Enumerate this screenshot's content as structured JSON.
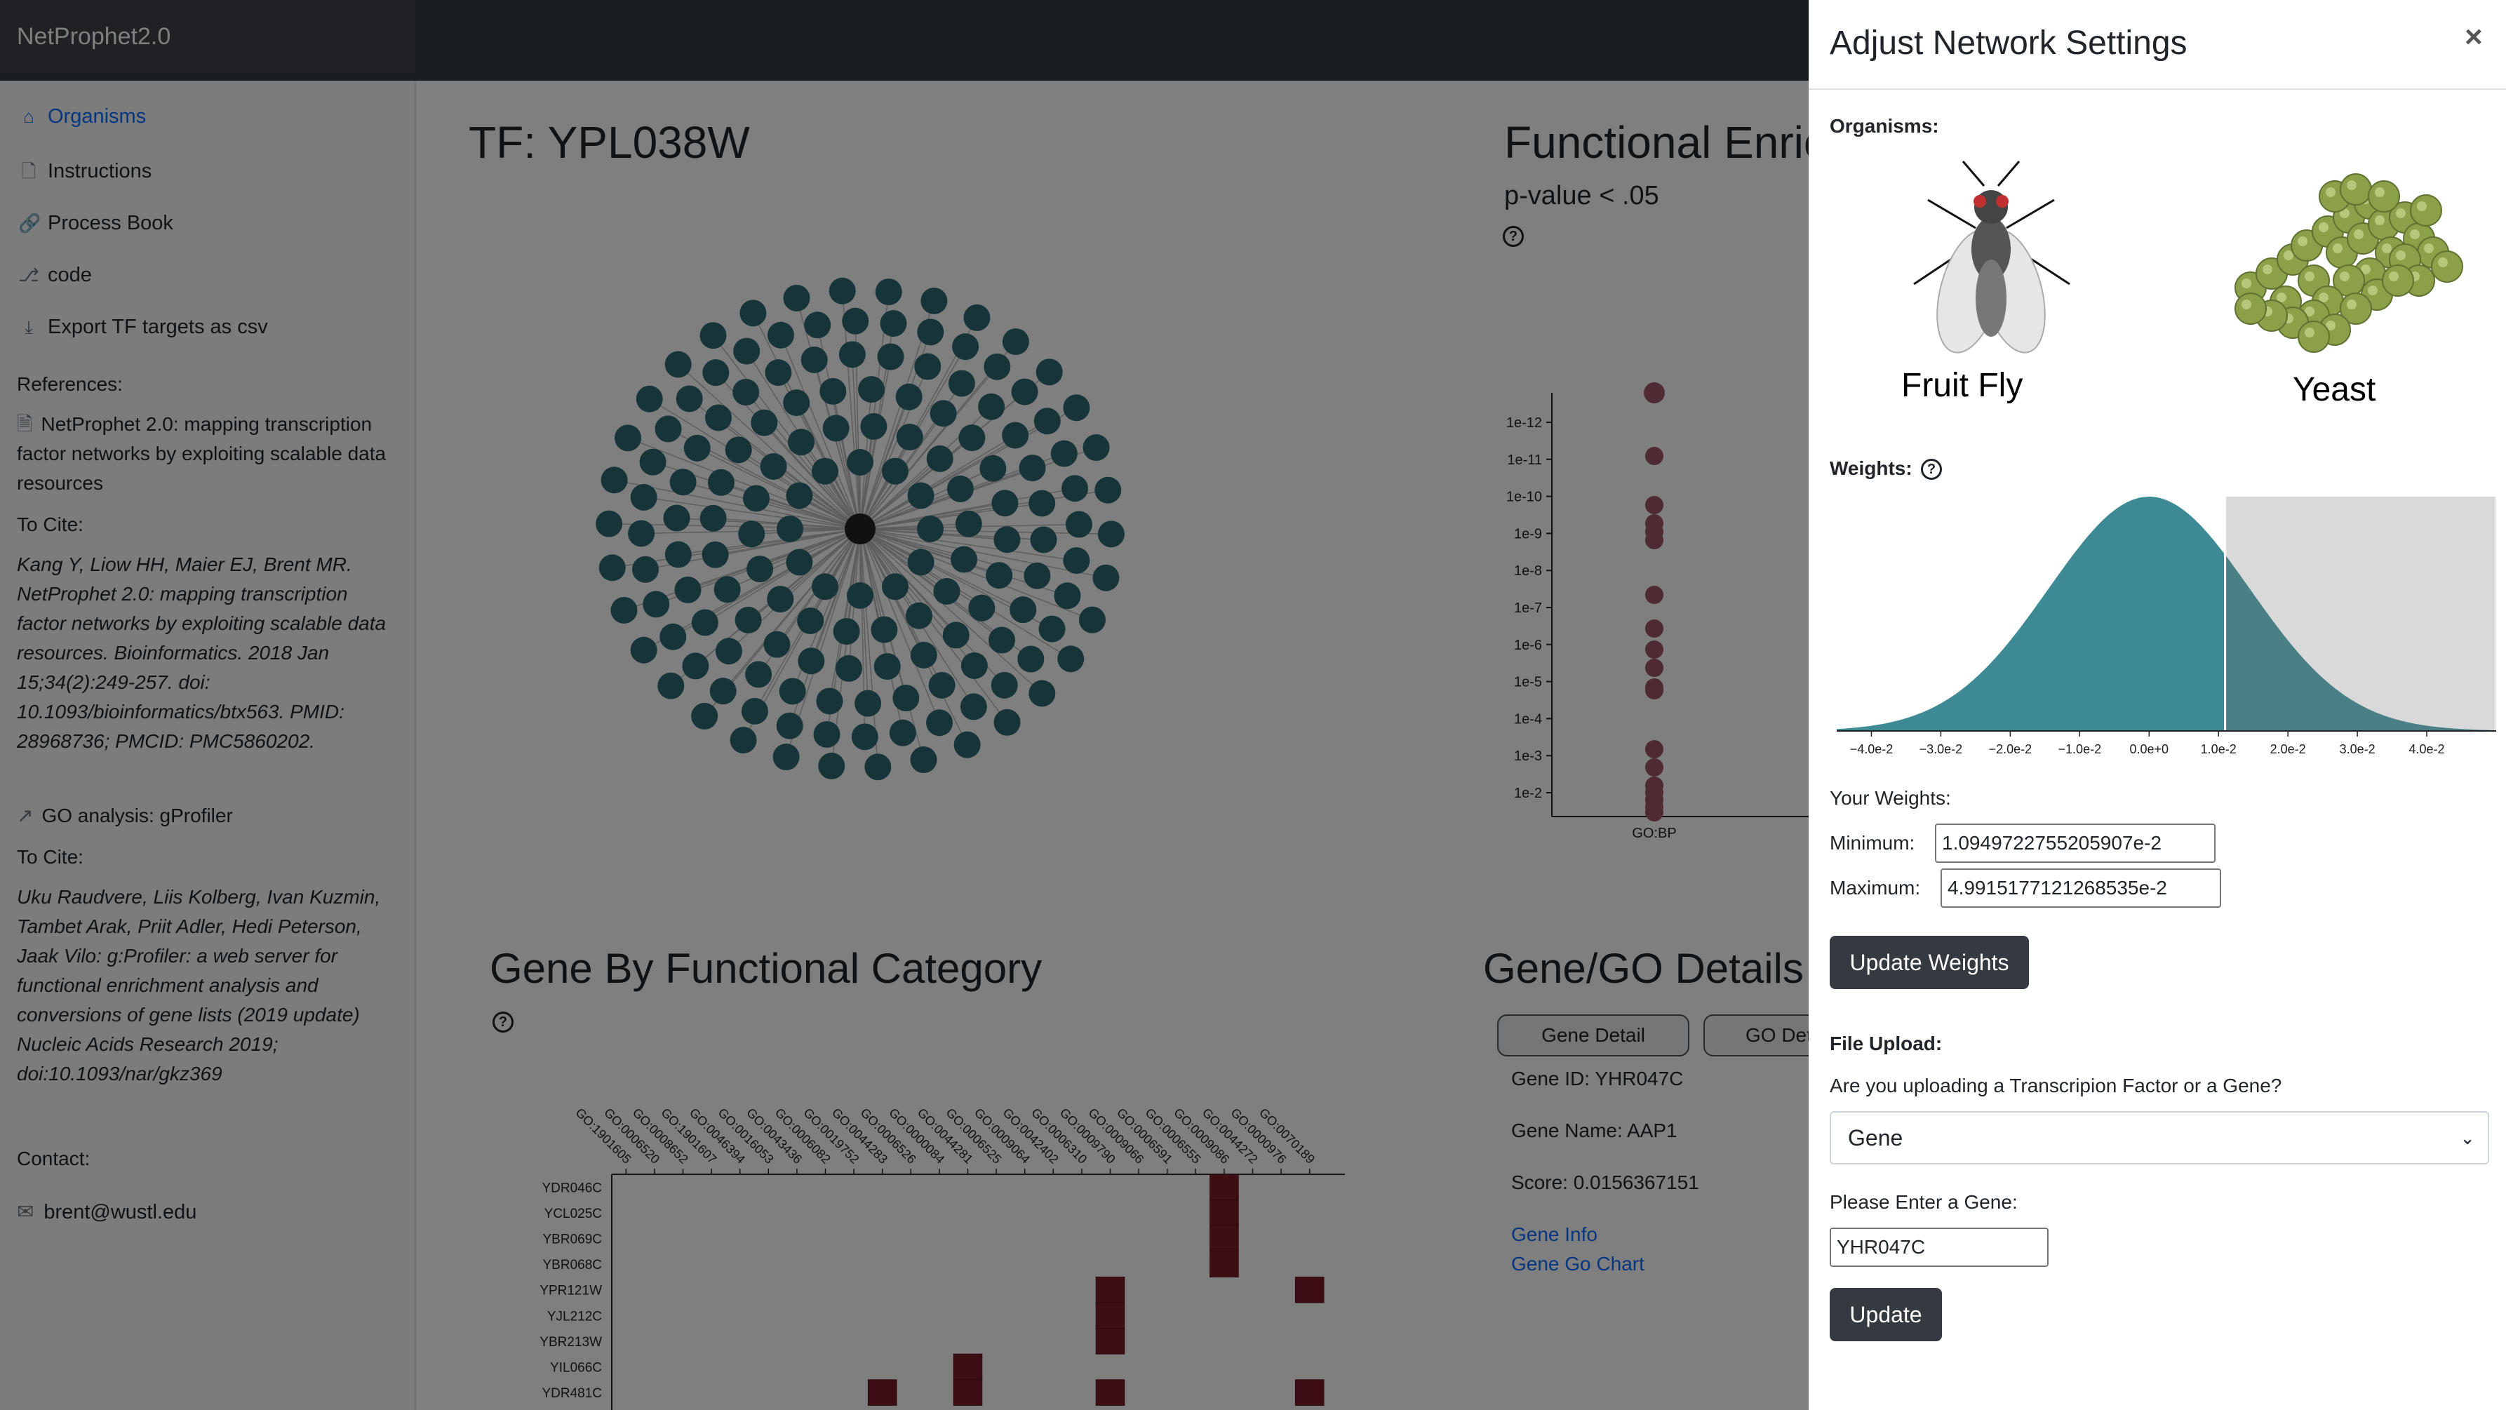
{
  "navbar": {
    "brand": "NetProphet2.0"
  },
  "sidebar": {
    "items": [
      {
        "label": "Organisms",
        "icon": "home-icon",
        "active": true
      },
      {
        "label": "Instructions",
        "icon": "file-icon"
      },
      {
        "label": "Process Book",
        "icon": "link-icon"
      },
      {
        "label": "code",
        "icon": "github-icon"
      },
      {
        "label": "Export TF targets as csv",
        "icon": "download-icon"
      }
    ],
    "references_heading": "References:",
    "ref1_title": "NetProphet 2.0: mapping transcription factor networks by exploiting scalable data resources",
    "to_cite_1": "To Cite:",
    "cite1": "Kang Y, Liow HH, Maier EJ, Brent MR. NetProphet 2.0: mapping transcription factor networks by exploiting scalable data resources. Bioinformatics. 2018 Jan 15;34(2):249-257. doi: 10.1093/bioinformatics/btx563. PMID: 28968736; PMCID: PMC5860202.",
    "ref2_title": "GO analysis: gProfiler",
    "to_cite_2": "To Cite:",
    "cite2": "Uku Raudvere, Liis Kolberg, Ivan Kuzmin, Tambet Arak, Priit Adler, Hedi Peterson, Jaak Vilo: g:Profiler: a web server for functional enrichment analysis and conversions of gene lists (2019 update) Nucleic Acids Research 2019; doi:10.1093/nar/gkz369",
    "contact_heading": "Contact:",
    "email": "brent@wustl.edu"
  },
  "network": {
    "title": "TF: YPL038W"
  },
  "enrichment": {
    "title": "Functional Enrichment",
    "subtitle": "p-value < .05",
    "yticks": [
      "1e-12",
      "1e-11",
      "1e-10",
      "1e-9",
      "1e-8",
      "1e-7",
      "1e-6",
      "1e-5",
      "1e-4",
      "1e-3",
      "1e-2"
    ],
    "xtick": "GO:BP"
  },
  "heatmap": {
    "title": "Gene By Functional Category",
    "columns": [
      "GO:1901605",
      "GO:0006520",
      "GO:0008652",
      "GO:1901607",
      "GO:0046394",
      "GO:0016053",
      "GO:0043436",
      "GO:0006082",
      "GO:0019752",
      "GO:0044283",
      "GO:0006526",
      "GO:0000084",
      "GO:0044281",
      "GO:0006525",
      "GO:0009064",
      "GO:0042402",
      "GO:0006310",
      "GO:0009790",
      "GO:0009066",
      "GO:0006591",
      "GO:0006555",
      "GO:0009086",
      "GO:0044272",
      "GO:0000976",
      "GO:0070189"
    ],
    "rows": [
      "YDR046C",
      "YCL025C",
      "YBR069C",
      "YBR068C",
      "YPR121W",
      "YJL212C",
      "YBR213W",
      "YIL066C",
      "YDR481C"
    ]
  },
  "gene_details": {
    "title": "Gene/GO Details",
    "tab_gene": "Gene Detail",
    "tab_go": "GO Detail",
    "gene_id": "Gene ID: YHR047C",
    "gene_name": "Gene Name: AAP1",
    "score": "Score: 0.0156367151",
    "link_info": "Gene Info",
    "link_chart": "Gene Go Chart"
  },
  "modal": {
    "title": "Adjust Network Settings",
    "close": "×",
    "organisms_label": "Organisms:",
    "organism_fly": "Fruit Fly",
    "organism_yeast": "Yeast",
    "weights_label": "Weights:",
    "weight_ticks": [
      "−4.0e-2",
      "−3.0e-2",
      "−2.0e-2",
      "−1.0e-2",
      "0.0e+0",
      "1.0e-2",
      "2.0e-2",
      "3.0e-2",
      "4.0e-2"
    ],
    "your_weights": "Your Weights:",
    "min_label": "Minimum:",
    "min_value": "1.0949722755205907e-2",
    "max_label": "Maximum:",
    "max_value": "4.9915177121268535e-2",
    "update_weights": "Update Weights",
    "file_upload": "File Upload:",
    "upload_question": "Are you uploading a Transcripion Factor or a Gene?",
    "upload_select": "Gene",
    "enter_gene": "Please Enter a Gene:",
    "gene_value": "YHR047C",
    "update": "Update"
  },
  "colors": {
    "node": "#2e6b73",
    "center_node": "#222222",
    "heat": "#7a1f2b",
    "curve": "#3d8a94",
    "navbar": "#212529"
  }
}
